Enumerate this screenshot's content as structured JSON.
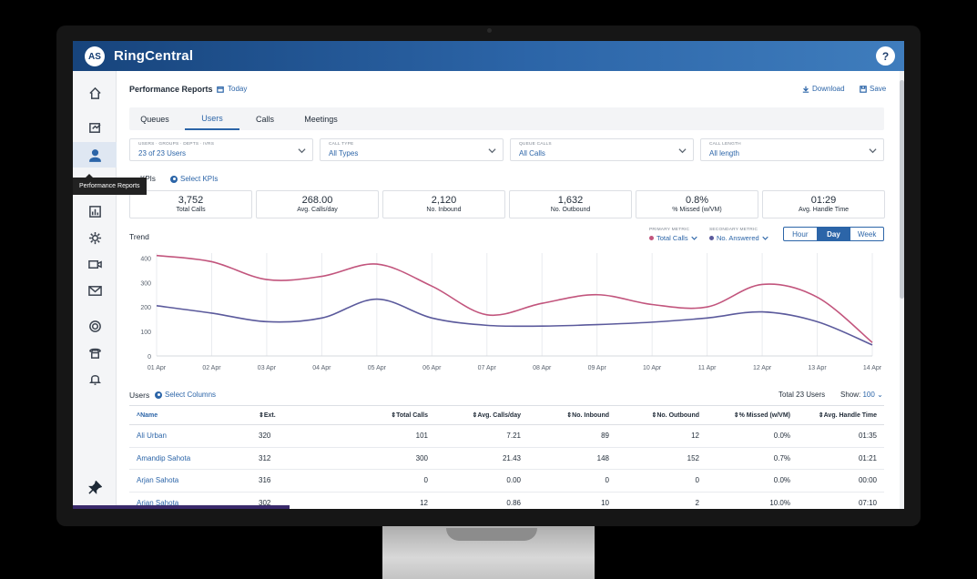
{
  "app": {
    "avatar_initials": "AS",
    "brand": "RingCentral",
    "help": "?"
  },
  "sidebar": {
    "items": [
      {
        "name": "home-icon",
        "active": false
      },
      {
        "name": "analytics-icon",
        "active": false
      },
      {
        "name": "users-icon",
        "active": true
      },
      {
        "name": "performance-icon",
        "active": false
      },
      {
        "name": "bar-chart-icon",
        "active": false
      },
      {
        "name": "settings-icon",
        "active": false
      },
      {
        "name": "video-icon",
        "active": false
      },
      {
        "name": "mail-icon",
        "active": false
      },
      {
        "name": "support-icon",
        "active": false
      },
      {
        "name": "phone-icon",
        "active": false
      },
      {
        "name": "bell-icon",
        "active": false
      }
    ],
    "tooltip": "Performance Reports",
    "pin": "pin-icon"
  },
  "header": {
    "title": "Performance Reports",
    "date": "Today",
    "download": "Download",
    "save": "Save"
  },
  "tabs": [
    {
      "label": "Queues",
      "active": false
    },
    {
      "label": "Users",
      "active": true
    },
    {
      "label": "Calls",
      "active": false
    },
    {
      "label": "Meetings",
      "active": false
    }
  ],
  "filters": [
    {
      "label": "Users · Groups · Depts · IVRs",
      "value": "23 of 23 Users"
    },
    {
      "label": "Call Type",
      "value": "All Types"
    },
    {
      "label": "Queue Calls",
      "value": "All Calls"
    },
    {
      "label": "Call Length",
      "value": "All length"
    }
  ],
  "kpis": {
    "header": "KPIs",
    "select_label": "Select KPIs",
    "items": [
      {
        "value": "3,752",
        "label": "Total Calls"
      },
      {
        "value": "268.00",
        "label": "Avg. Calls/day"
      },
      {
        "value": "2,120",
        "label": "No. Inbound"
      },
      {
        "value": "1,632",
        "label": "No. Outbound"
      },
      {
        "value": "0.8%",
        "label": "% Missed (w/VM)"
      },
      {
        "value": "01:29",
        "label": "Avg. Handle Time"
      }
    ]
  },
  "trend": {
    "label": "Trend",
    "primary_label": "Primary Metric",
    "primary_value": "Total Calls",
    "secondary_label": "Secondary Metric",
    "secondary_value": "No. Answered",
    "granularity": [
      {
        "label": "Hour",
        "active": false
      },
      {
        "label": "Day",
        "active": true
      },
      {
        "label": "Week",
        "active": false
      }
    ]
  },
  "chart_data": {
    "type": "line",
    "x": [
      "01 Apr",
      "02 Apr",
      "03 Apr",
      "04 Apr",
      "05 Apr",
      "06 Apr",
      "07 Apr",
      "08 Apr",
      "09 Apr",
      "10 Apr",
      "11 Apr",
      "12 Apr",
      "13 Apr",
      "14 Apr"
    ],
    "yticks": [
      0,
      100,
      200,
      300,
      400
    ],
    "ylim": [
      0,
      420
    ],
    "grid": "vertical",
    "series": [
      {
        "name": "Total Calls",
        "color": "#c2557d",
        "values": [
          410,
          385,
          312,
          325,
          375,
          285,
          168,
          215,
          250,
          210,
          200,
          292,
          240,
          55
        ]
      },
      {
        "name": "No. Answered",
        "color": "#5b5a9c",
        "values": [
          205,
          175,
          140,
          155,
          232,
          155,
          125,
          122,
          128,
          138,
          155,
          180,
          140,
          45
        ]
      }
    ]
  },
  "users": {
    "label": "Users",
    "select_columns": "Select Columns",
    "total": "Total 23 Users",
    "show_label": "Show:",
    "show_value": "100",
    "columns": [
      "Name",
      "Ext.",
      "Total Calls",
      "Avg. Calls/day",
      "No. Inbound",
      "No. Outbound",
      "% Missed (w/VM)",
      "Avg. Handle Time"
    ],
    "rows": [
      [
        "Ali Urban",
        "320",
        "101",
        "7.21",
        "89",
        "12",
        "0.0%",
        "01:35"
      ],
      [
        "Amandip Sahota",
        "312",
        "300",
        "21.43",
        "148",
        "152",
        "0.7%",
        "01:21"
      ],
      [
        "Arjan Sahota",
        "316",
        "0",
        "0.00",
        "0",
        "0",
        "0.0%",
        "00:00"
      ],
      [
        "Arjan Sahota",
        "302",
        "12",
        "0.86",
        "10",
        "2",
        "10.0%",
        "07:10"
      ]
    ]
  }
}
